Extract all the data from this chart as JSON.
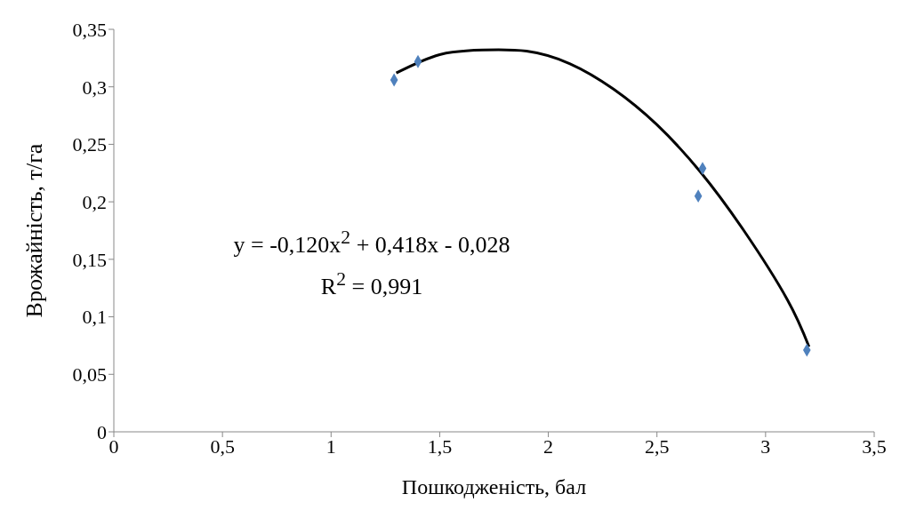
{
  "chart_data": {
    "type": "scatter",
    "xlabel": "Пошкодженість, бал",
    "ylabel": "Врожайність, т/га",
    "xlim": [
      0,
      3.5
    ],
    "xticks": [
      0,
      {
        "value": 0.5,
        "label": "0,5"
      },
      1,
      {
        "value": 1.5,
        "label": "1,5"
      },
      2,
      {
        "value": 2.5,
        "label": "2,5"
      },
      3,
      {
        "value": 3.5,
        "label": "3,5"
      }
    ],
    "ylim": [
      0,
      0.35
    ],
    "yticks": [
      0,
      {
        "value": 0.05,
        "label": "0,05"
      },
      {
        "value": 0.1,
        "label": "0,1"
      },
      {
        "value": 0.15,
        "label": "0,15"
      },
      {
        "value": 0.2,
        "label": "0,2"
      },
      {
        "value": 0.25,
        "label": "0,25"
      },
      {
        "value": 0.3,
        "label": "0,3"
      },
      {
        "value": 0.35,
        "label": "0,35"
      }
    ],
    "grid": false,
    "legend": false,
    "line_style": "solid",
    "series": [
      {
        "marker": "diamond",
        "color": "#4f81bd",
        "x": [
          1.29,
          1.4,
          2.71,
          2.69,
          3.19
        ],
        "values": [
          0.306,
          0.322,
          0.229,
          0.205,
          0.071
        ]
      },
      {
        "type": "line",
        "marker": "none",
        "color": "#000000",
        "x": [
          1.3,
          1.5,
          1.7,
          1.9,
          2.1,
          2.3,
          2.5,
          2.7,
          2.9,
          3.1,
          3.2
        ],
        "values": [
          0.312,
          0.328,
          0.332,
          0.331,
          0.32,
          0.298,
          0.267,
          0.226,
          0.175,
          0.115,
          0.074
        ]
      }
    ],
    "annotations": [
      "y = -0,120x$^{2}$ + 0,418x - 0,028",
      "R$^{2}$ = 0,991"
    ]
  }
}
